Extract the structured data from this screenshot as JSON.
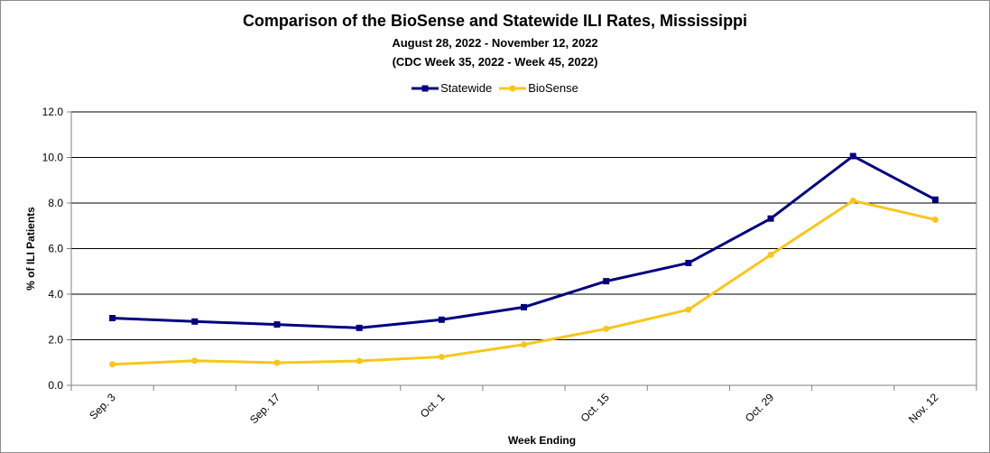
{
  "chart_data": {
    "type": "line",
    "title": "Comparison of the BioSense and Statewide ILI Rates, Mississippi",
    "subtitle": "August 28, 2022 - November 12, 2022",
    "subtitle2": "(CDC Week 35, 2022 - Week 45, 2022)",
    "xlabel": "Week Ending",
    "ylabel": "% of ILI Patients",
    "categories": [
      "Sep. 3",
      "",
      "Sep. 17",
      "",
      "Oct. 1",
      "",
      "Oct. 15",
      "",
      "Oct. 29",
      "",
      "Nov. 12"
    ],
    "ylim": [
      0,
      12
    ],
    "yticks": [
      "0.0",
      "2.0",
      "4.0",
      "6.0",
      "8.0",
      "10.0",
      "12.0"
    ],
    "grid": true,
    "legend_position": "top",
    "series": [
      {
        "name": "Statewide",
        "color": "#00007f",
        "marker": "square",
        "values": [
          2.95,
          2.8,
          2.67,
          2.52,
          2.88,
          3.43,
          4.57,
          5.37,
          7.32,
          10.06,
          8.15
        ]
      },
      {
        "name": "BioSense",
        "color": "#f7c61d",
        "marker": "circle",
        "values": [
          0.92,
          1.08,
          0.99,
          1.07,
          1.25,
          1.79,
          2.48,
          3.32,
          5.73,
          8.1,
          7.27
        ]
      }
    ]
  }
}
